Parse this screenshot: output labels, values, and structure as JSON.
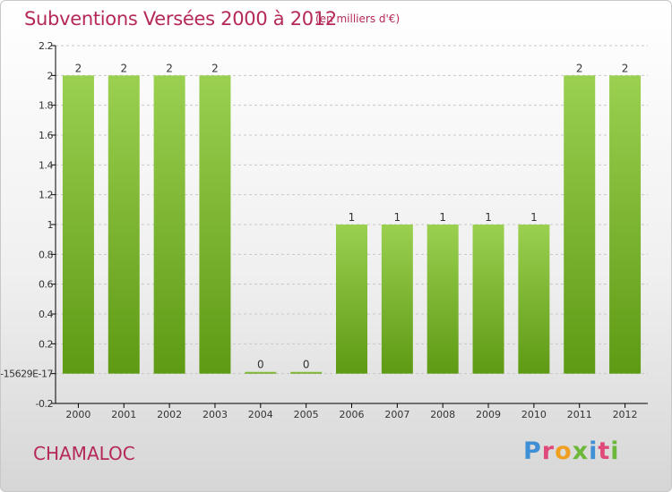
{
  "header": {
    "title": "Subventions Versées 2000 à 2012",
    "unit": "(en milliers d'€)"
  },
  "footer": {
    "place": "CHAMALOC",
    "logo": {
      "text": "Proxiti",
      "letter_colors": [
        "#3f8fd6",
        "#e04a7a",
        "#f0a020",
        "#6bb83a",
        "#3f8fd6",
        "#e04a7a",
        "#6bb83a"
      ]
    }
  },
  "colors": {
    "bar_light": "#9bd050",
    "bar_dark": "#5e9a14",
    "grid": "#c8c8c8",
    "axis": "#000000",
    "text": "#333333"
  },
  "chart_data": {
    "type": "bar",
    "title": "Subventions Versées 2000 à 2012",
    "subtitle": "(en milliers d'€)",
    "categories": [
      "2000",
      "2001",
      "2002",
      "2003",
      "2004",
      "2005",
      "2006",
      "2007",
      "2008",
      "2009",
      "2010",
      "2011",
      "2012"
    ],
    "values": [
      2,
      2,
      2,
      2,
      0,
      0,
      1,
      1,
      1,
      1,
      1,
      2,
      2
    ],
    "data_labels": [
      "2",
      "2",
      "2",
      "2",
      "0",
      "0",
      "1",
      "1",
      "1",
      "1",
      "1",
      "2",
      "2"
    ],
    "ylim": [
      -0.2,
      2.2
    ],
    "yticks": [
      2.2,
      2,
      1.8,
      1.6,
      1.4,
      1.2,
      1,
      0.8,
      0.6,
      0.4,
      0.2,
      0,
      -0.2
    ],
    "ytick_labels": [
      "2.2",
      "2",
      "1.8",
      "1.6",
      "1.4",
      "1.2",
      "1",
      "0.8",
      "0.6",
      "0.4",
      "0.2",
      "-15629E-17",
      "-0.2"
    ],
    "grid": true,
    "grid_style": "dashed-horizontal",
    "legend": "none"
  }
}
